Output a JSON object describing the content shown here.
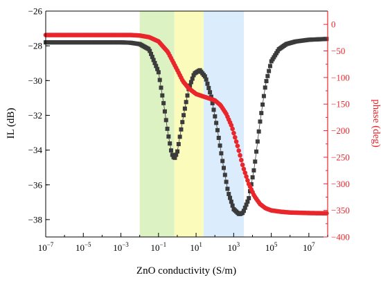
{
  "chart_data": {
    "type": "scatter",
    "xlabel": "ZnO conductivity (S/m)",
    "ylabel_left": "IL (dB)",
    "ylabel_right": "phase (deg)",
    "x_scale": "log",
    "xlim": [
      1e-07,
      100000000.0
    ],
    "ylim_left": [
      -39,
      -26
    ],
    "ylim_right": [
      -400,
      25
    ],
    "x_ticks": [
      {
        "value": 1e-07,
        "base": "10",
        "exp": "−7"
      },
      {
        "value": 1e-05,
        "base": "10",
        "exp": "−5"
      },
      {
        "value": 0.001,
        "base": "10",
        "exp": "−3"
      },
      {
        "value": 0.1,
        "base": "10",
        "exp": "−1"
      },
      {
        "value": 10.0,
        "base": "10",
        "exp": "1"
      },
      {
        "value": 1000.0,
        "base": "10",
        "exp": "3"
      },
      {
        "value": 100000.0,
        "base": "10",
        "exp": "5"
      },
      {
        "value": 10000000.0,
        "base": "10",
        "exp": "7"
      }
    ],
    "y_ticks_left": [
      {
        "value": -26,
        "label": "−26"
      },
      {
        "value": -28,
        "label": "−28"
      },
      {
        "value": -30,
        "label": "−30"
      },
      {
        "value": -32,
        "label": "−32"
      },
      {
        "value": -34,
        "label": "−34"
      },
      {
        "value": -36,
        "label": "−36"
      },
      {
        "value": -38,
        "label": "−38"
      }
    ],
    "y_ticks_right": [
      {
        "value": 0,
        "label": "0"
      },
      {
        "value": -50,
        "label": "−50"
      },
      {
        "value": -100,
        "label": "−100"
      },
      {
        "value": -150,
        "label": "−150"
      },
      {
        "value": -200,
        "label": "−200"
      },
      {
        "value": -250,
        "label": "−250"
      },
      {
        "value": -300,
        "label": "−300"
      },
      {
        "value": -350,
        "label": "−350"
      },
      {
        "value": -400,
        "label": "−400"
      }
    ],
    "bands": [
      {
        "x_from": 0.01,
        "x_to": 0.7,
        "color": "#d6f0b8"
      },
      {
        "x_from": 0.7,
        "x_to": 25,
        "color": "#fafab0"
      },
      {
        "x_from": 25,
        "x_to": 3500,
        "color": "#d5eafb"
      }
    ],
    "series": [
      {
        "axis": "left",
        "marker": "square",
        "color": "#3b3b3b",
        "points": [
          [
            -7.0,
            -27.8
          ],
          [
            -3.0,
            -27.8
          ],
          [
            -2.5,
            -27.82
          ],
          [
            -2.0,
            -27.9
          ],
          [
            -1.5,
            -28.2
          ],
          [
            -1.0,
            -29.5
          ],
          [
            -0.7,
            -31.5
          ],
          [
            -0.5,
            -33.0
          ],
          [
            -0.3,
            -34.2
          ],
          [
            -0.15,
            -34.5
          ],
          [
            0.0,
            -34.1
          ],
          [
            0.3,
            -32.2
          ],
          [
            0.6,
            -30.5
          ],
          [
            0.9,
            -29.6
          ],
          [
            1.2,
            -29.4
          ],
          [
            1.5,
            -29.8
          ],
          [
            1.8,
            -30.9
          ],
          [
            2.1,
            -32.6
          ],
          [
            2.4,
            -34.6
          ],
          [
            2.7,
            -36.4
          ],
          [
            3.0,
            -37.4
          ],
          [
            3.3,
            -37.7
          ],
          [
            3.5,
            -37.6
          ],
          [
            3.8,
            -36.8
          ],
          [
            4.1,
            -35.0
          ],
          [
            4.4,
            -32.4
          ],
          [
            4.7,
            -30.2
          ],
          [
            5.0,
            -28.9
          ],
          [
            5.4,
            -28.2
          ],
          [
            5.8,
            -27.9
          ],
          [
            6.3,
            -27.75
          ],
          [
            7.0,
            -27.65
          ],
          [
            8.0,
            -27.6
          ]
        ]
      },
      {
        "axis": "right",
        "marker": "circle",
        "color": "#e8262b",
        "points": [
          [
            -7.0,
            -20.0
          ],
          [
            -2.5,
            -20.0
          ],
          [
            -2.0,
            -21.0
          ],
          [
            -1.5,
            -24.0
          ],
          [
            -1.0,
            -32.0
          ],
          [
            -0.5,
            -52.0
          ],
          [
            0.0,
            -86.0
          ],
          [
            0.3,
            -107.0
          ],
          [
            0.6,
            -120.0
          ],
          [
            1.0,
            -131.0
          ],
          [
            1.5,
            -137.0
          ],
          [
            2.0,
            -143.0
          ],
          [
            2.3,
            -152.0
          ],
          [
            2.6,
            -168.0
          ],
          [
            2.9,
            -192.0
          ],
          [
            3.2,
            -228.0
          ],
          [
            3.5,
            -268.0
          ],
          [
            3.8,
            -300.0
          ],
          [
            4.1,
            -323.0
          ],
          [
            4.4,
            -338.0
          ],
          [
            4.7,
            -346.0
          ],
          [
            5.0,
            -350.0
          ],
          [
            5.5,
            -352.5
          ],
          [
            6.0,
            -354.0
          ],
          [
            7.0,
            -355.0
          ],
          [
            8.0,
            -355.5
          ]
        ]
      }
    ]
  }
}
